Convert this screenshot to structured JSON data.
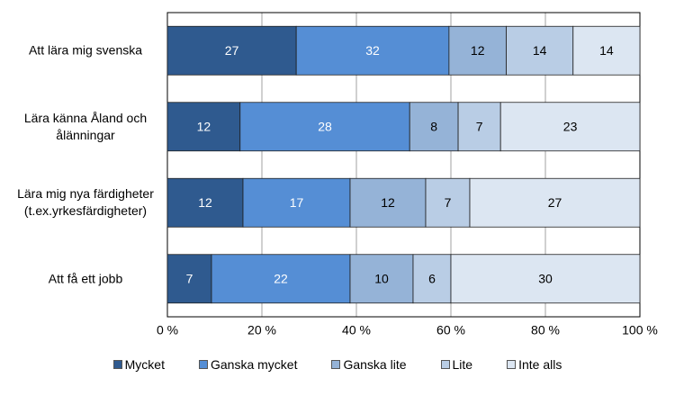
{
  "chart_data": {
    "type": "bar",
    "orientation": "horizontal",
    "stacking": "percent",
    "categories": [
      "Att lära mig svenska",
      "Lära känna Åland och\nålänningar",
      "Lära mig nya färdigheter\n(t.ex.yrkesfärdigheter)",
      "Att få ett jobb"
    ],
    "series": [
      {
        "name": "Mycket",
        "color": "#2f5a8f",
        "values": [
          27,
          12,
          12,
          7
        ]
      },
      {
        "name": "Ganska mycket",
        "color": "#558ed5",
        "values": [
          32,
          28,
          17,
          22
        ]
      },
      {
        "name": "Ganska lite",
        "color": "#95b3d7",
        "values": [
          12,
          8,
          12,
          10
        ]
      },
      {
        "name": "Lite",
        "color": "#b9cde5",
        "values": [
          14,
          7,
          7,
          6
        ]
      },
      {
        "name": "Inte alls",
        "color": "#dce6f2",
        "values": [
          14,
          23,
          27,
          30
        ]
      }
    ],
    "xlim": [
      0,
      100
    ],
    "xticks": [
      {
        "value": 0,
        "label": "0 %"
      },
      {
        "value": 20,
        "label": "20 %"
      },
      {
        "value": 40,
        "label": "40 %"
      },
      {
        "value": 60,
        "label": "60 %"
      },
      {
        "value": 80,
        "label": "80 %"
      },
      {
        "value": 100,
        "label": "100 %"
      }
    ],
    "grid": true,
    "legend": "bottom"
  }
}
